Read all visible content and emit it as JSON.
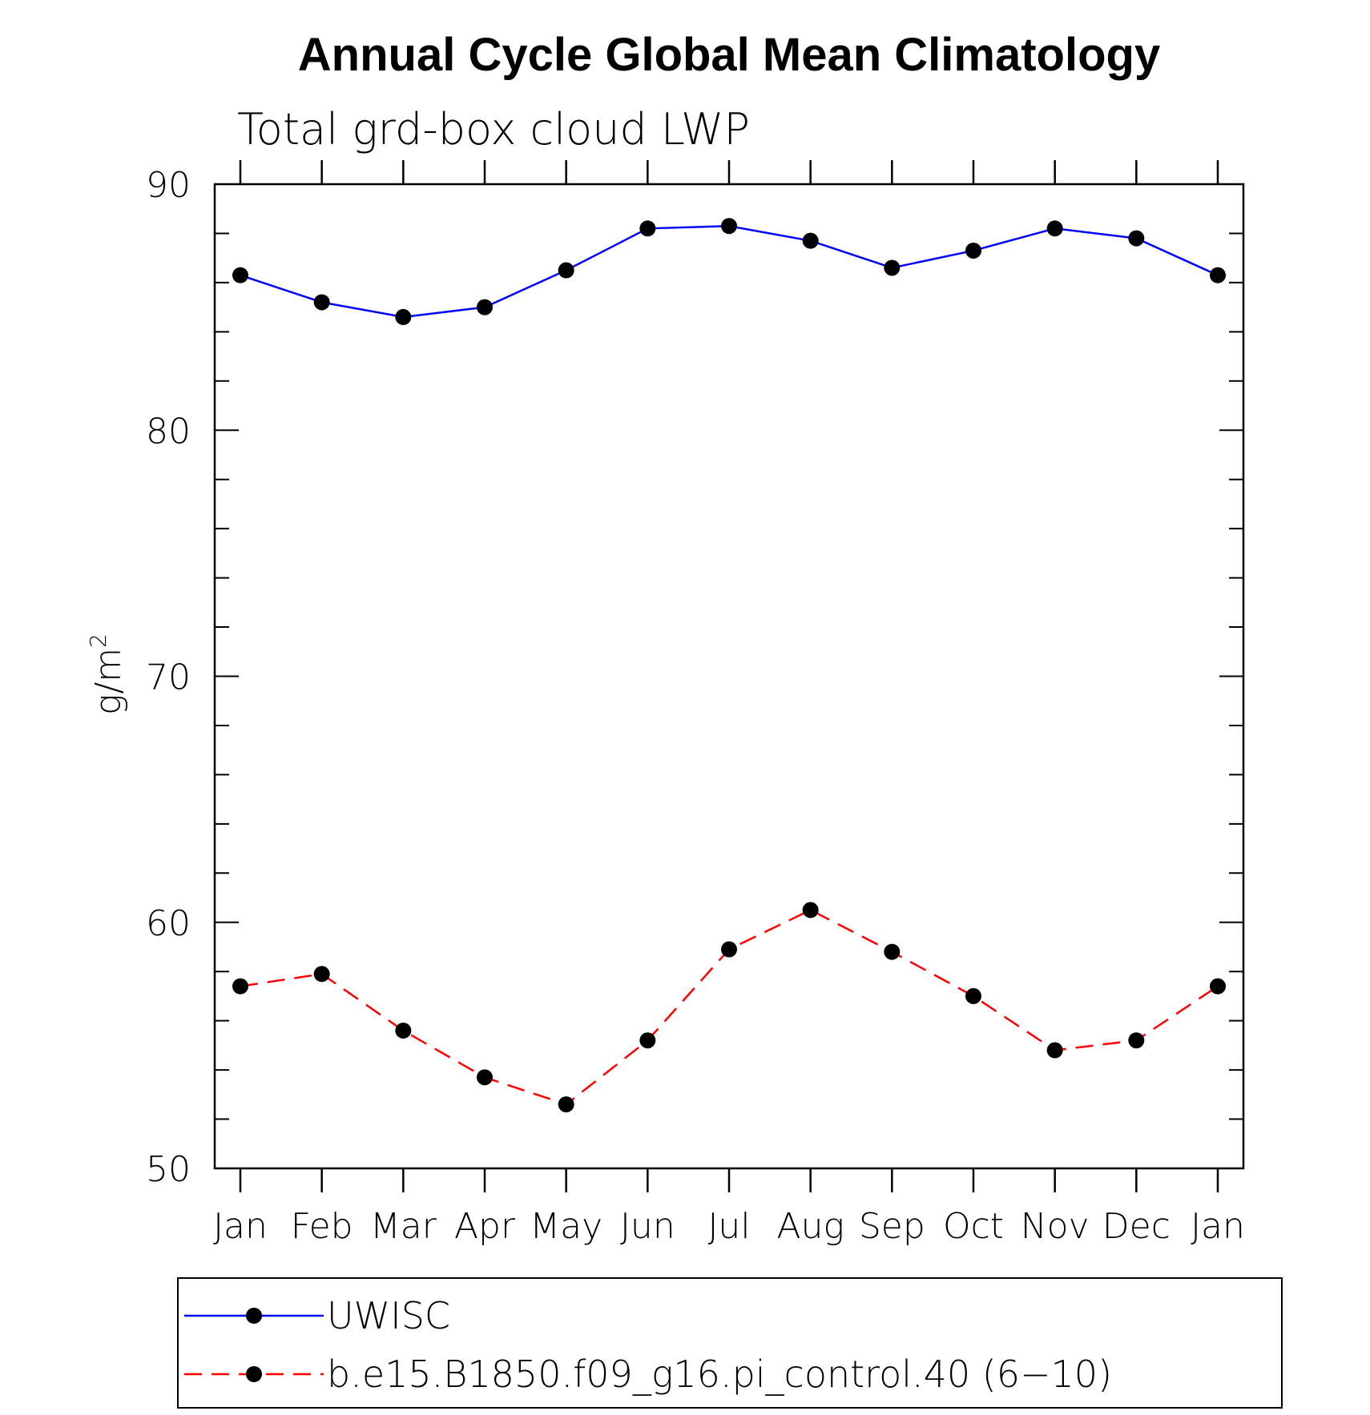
{
  "chart_data": {
    "type": "line",
    "title": "Annual Cycle Global Mean Climatology",
    "subtitle": "Total grd-box cloud LWP",
    "ylabel": "g/m",
    "ylabel_sup": "2",
    "xlabel": "",
    "ylim": [
      50,
      90
    ],
    "yticks": [
      "50",
      "60",
      "70",
      "80",
      "90"
    ],
    "categories": [
      "Jan",
      "Feb",
      "Mar",
      "Apr",
      "May",
      "Jun",
      "Jul",
      "Aug",
      "Sep",
      "Oct",
      "Nov",
      "Dec",
      "Jan"
    ],
    "series": [
      {
        "name": "UWISC",
        "color": "#0000ff",
        "dash": "solid",
        "marker": "filled-circle",
        "values": [
          86.3,
          85.2,
          84.6,
          85.0,
          86.5,
          88.2,
          88.3,
          87.7,
          86.6,
          87.3,
          88.2,
          87.8,
          86.3
        ]
      },
      {
        "name": "b.e15.B1850.f09_g16.pi_control.40 (6−10)",
        "color": "#ff0000",
        "dash": "dashed",
        "marker": "filled-circle",
        "values": [
          57.4,
          57.9,
          55.6,
          53.7,
          52.6,
          55.2,
          58.9,
          60.5,
          58.8,
          57.0,
          54.8,
          55.2,
          57.4
        ]
      }
    ],
    "legend_position": "bottom",
    "grid": false
  }
}
